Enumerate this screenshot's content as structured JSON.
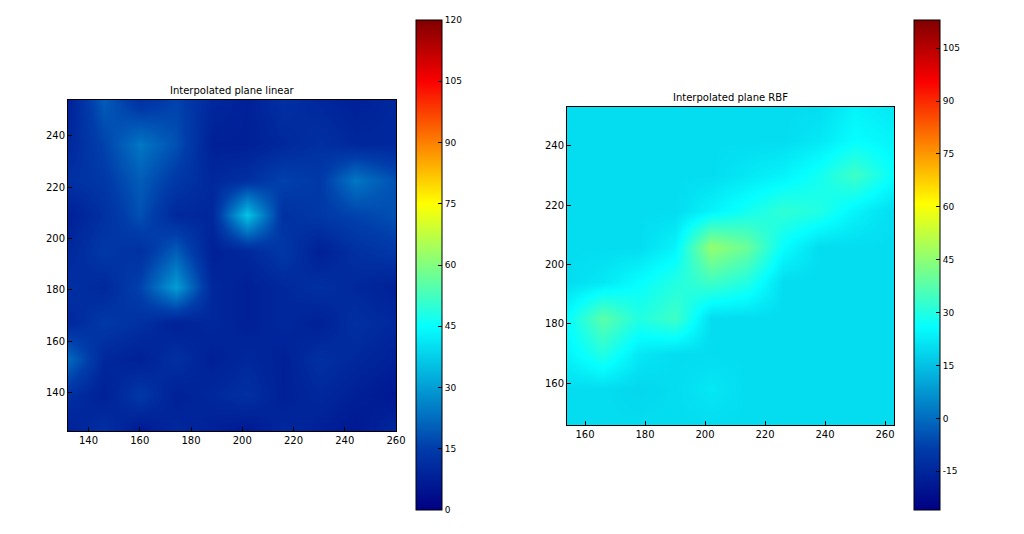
{
  "chart_data": [
    {
      "type": "heatmap",
      "title": "Interpolated plane linear",
      "x": [
        132,
        146,
        160,
        174,
        188,
        202,
        216,
        230,
        244,
        260
      ],
      "y": [
        125,
        139,
        153,
        167,
        181,
        195,
        209,
        223,
        237,
        254
      ],
      "cells": [
        [
          8,
          12,
          6,
          10,
          8,
          6,
          10,
          8,
          6,
          10
        ],
        [
          12,
          8,
          14,
          8,
          10,
          12,
          8,
          10,
          8,
          6
        ],
        [
          22,
          10,
          8,
          12,
          8,
          10,
          8,
          12,
          10,
          8
        ],
        [
          10,
          14,
          12,
          8,
          10,
          8,
          10,
          8,
          12,
          10
        ],
        [
          12,
          10,
          16,
          30,
          10,
          8,
          10,
          12,
          10,
          8
        ],
        [
          10,
          14,
          12,
          20,
          8,
          10,
          14,
          8,
          12,
          14
        ],
        [
          8,
          12,
          18,
          10,
          10,
          36,
          12,
          14,
          16,
          18
        ],
        [
          12,
          14,
          20,
          14,
          10,
          12,
          16,
          14,
          24,
          18
        ],
        [
          10,
          16,
          24,
          18,
          8,
          8,
          10,
          12,
          10,
          10
        ],
        [
          8,
          20,
          12,
          16,
          10,
          8,
          12,
          10,
          8,
          10
        ]
      ],
      "xlim": [
        132,
        260
      ],
      "ylim": [
        125,
        254
      ],
      "xticks": [
        140,
        160,
        180,
        200,
        220,
        240,
        260
      ],
      "yticks": [
        140,
        160,
        180,
        200,
        220,
        240
      ],
      "colorbar_range": [
        0,
        120
      ],
      "colorbar_ticks": [
        0,
        15,
        30,
        45,
        60,
        75,
        90,
        105,
        120
      ]
    },
    {
      "type": "heatmap",
      "title": "Interpolated plane RBF",
      "x": [
        154,
        166,
        178,
        190,
        202,
        214,
        226,
        238,
        250,
        263
      ],
      "y": [
        146,
        158,
        170,
        182,
        194,
        206,
        218,
        230,
        242,
        253
      ],
      "cells": [
        [
          20,
          20,
          20,
          20,
          20,
          20,
          20,
          20,
          20,
          20
        ],
        [
          20,
          20,
          19,
          20,
          22,
          20,
          20,
          20,
          20,
          20
        ],
        [
          24,
          30,
          22,
          20,
          20,
          20,
          20,
          20,
          20,
          20
        ],
        [
          26,
          38,
          30,
          34,
          20,
          20,
          20,
          20,
          20,
          20
        ],
        [
          20,
          22,
          26,
          30,
          34,
          30,
          20,
          20,
          20,
          20
        ],
        [
          20,
          20,
          20,
          24,
          46,
          40,
          26,
          20,
          20,
          20
        ],
        [
          20,
          20,
          20,
          20,
          24,
          28,
          32,
          30,
          24,
          20
        ],
        [
          20,
          20,
          20,
          20,
          20,
          22,
          24,
          28,
          34,
          26
        ],
        [
          20,
          20,
          20,
          20,
          20,
          20,
          20,
          22,
          26,
          24
        ],
        [
          20,
          20,
          20,
          20,
          20,
          20,
          20,
          20,
          24,
          22
        ]
      ],
      "xlim": [
        154,
        263
      ],
      "ylim": [
        146,
        253
      ],
      "xticks": [
        160,
        180,
        200,
        220,
        240,
        260
      ],
      "yticks": [
        160,
        180,
        200,
        220,
        240
      ],
      "colorbar_range": [
        -26,
        113
      ],
      "colorbar_ticks": [
        -15,
        0,
        15,
        30,
        45,
        60,
        75,
        90,
        105
      ]
    }
  ]
}
